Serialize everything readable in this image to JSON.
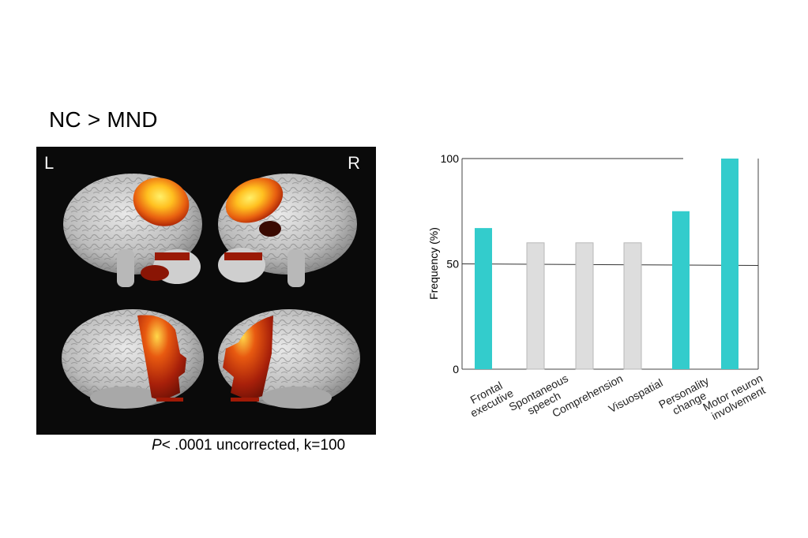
{
  "figure": {
    "title": "NC > MND",
    "brain_labels": {
      "left": "L",
      "right": "R"
    },
    "caption_p": "P",
    "caption_rest": "< .0001 uncorrected, k=100"
  },
  "colors": {
    "highlight": "#33cccc",
    "neutral": "#dddddd",
    "panel_bg": "#0a0a0a",
    "activation_hot": "#ffd23a",
    "activation_mid": "#f07010",
    "activation_low": "#8a1505"
  },
  "chart_data": {
    "type": "bar",
    "title": "",
    "xlabel": "",
    "ylabel": "Frequency (%)",
    "ylim": [
      0,
      100
    ],
    "yticks": [
      0,
      50,
      100
    ],
    "reference_lines": [
      50,
      100
    ],
    "grid": false,
    "categories": [
      [
        "Frontal",
        "executive"
      ],
      [
        "Spontaneous",
        "speech"
      ],
      [
        "Comprehension"
      ],
      [
        "Visuospatial"
      ],
      [
        "Personality",
        "change"
      ],
      [
        "Motor neuron",
        "involvement"
      ]
    ],
    "values": [
      67,
      60,
      60,
      60,
      75,
      100
    ],
    "highlighted": [
      true,
      false,
      false,
      false,
      true,
      true
    ]
  }
}
